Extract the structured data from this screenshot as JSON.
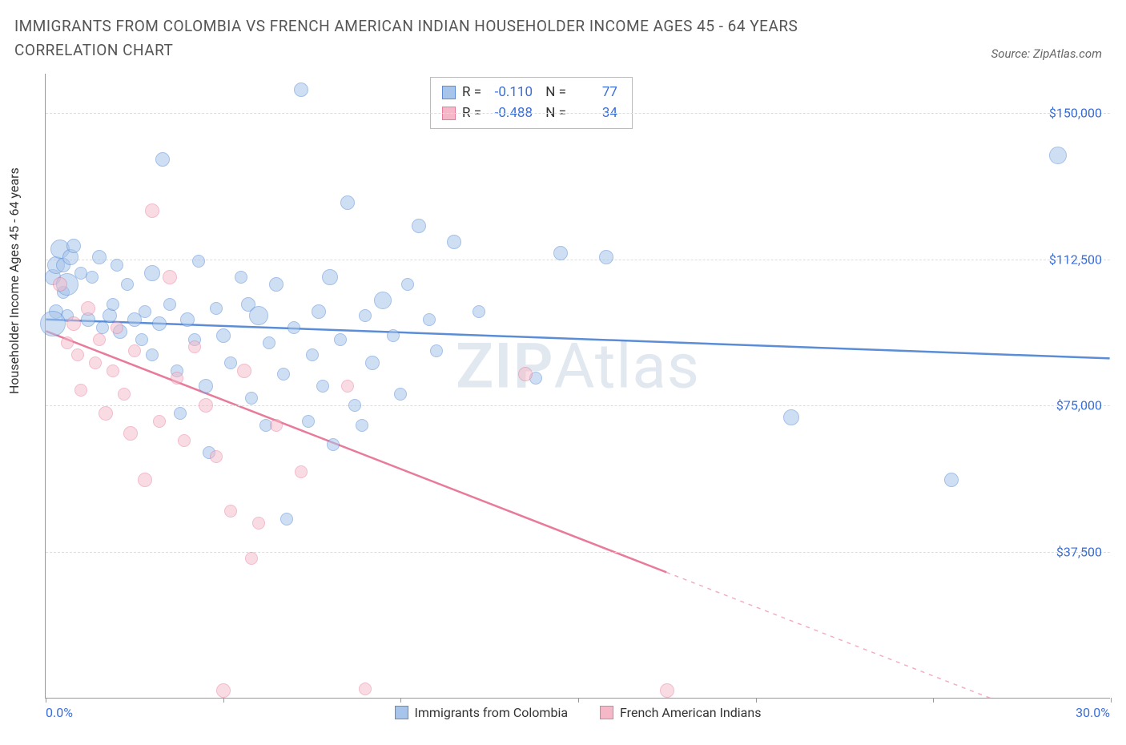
{
  "title": "IMMIGRANTS FROM COLOMBIA VS FRENCH AMERICAN INDIAN HOUSEHOLDER INCOME AGES 45 - 64 YEARS CORRELATION CHART",
  "source_label": "Source: ZipAtlas.com",
  "y_axis_label": "Householder Income Ages 45 - 64 years",
  "watermark": {
    "zip": "ZIP",
    "atlas": "Atlas"
  },
  "x_axis": {
    "min": 0,
    "max": 30,
    "min_label": "0.0%",
    "max_label": "30.0%",
    "tick_step": 5
  },
  "y_axis": {
    "min": 0,
    "max": 160000,
    "gridlines": [
      37500,
      75000,
      112500,
      150000
    ],
    "labels": [
      "$37,500",
      "$75,000",
      "$112,500",
      "$150,000"
    ]
  },
  "series": [
    {
      "name": "Immigrants from Colombia",
      "color_fill": "#a7c5eb",
      "color_stroke": "#5b8dd6",
      "opacity": 0.55,
      "r_value": "-0.110",
      "n_value": "77",
      "trend": {
        "y_at_xmin": 97000,
        "y_at_xmax": 87000,
        "solid_until_x": 30
      },
      "points": [
        {
          "x": 0.2,
          "y": 108000,
          "r": 10
        },
        {
          "x": 0.3,
          "y": 99000,
          "r": 9
        },
        {
          "x": 0.3,
          "y": 111000,
          "r": 11
        },
        {
          "x": 0.5,
          "y": 104000,
          "r": 8
        },
        {
          "x": 0.4,
          "y": 115000,
          "r": 12
        },
        {
          "x": 0.5,
          "y": 111000,
          "r": 9
        },
        {
          "x": 0.6,
          "y": 98000,
          "r": 8
        },
        {
          "x": 0.7,
          "y": 113000,
          "r": 10
        },
        {
          "x": 0.6,
          "y": 106000,
          "r": 14
        },
        {
          "x": 0.2,
          "y": 96000,
          "r": 16
        },
        {
          "x": 0.8,
          "y": 116000,
          "r": 9
        },
        {
          "x": 1.0,
          "y": 109000,
          "r": 8
        },
        {
          "x": 1.2,
          "y": 97000,
          "r": 9
        },
        {
          "x": 1.3,
          "y": 108000,
          "r": 8
        },
        {
          "x": 1.5,
          "y": 113000,
          "r": 9
        },
        {
          "x": 1.6,
          "y": 95000,
          "r": 8
        },
        {
          "x": 1.8,
          "y": 98000,
          "r": 9
        },
        {
          "x": 1.9,
          "y": 101000,
          "r": 8
        },
        {
          "x": 2.0,
          "y": 111000,
          "r": 8
        },
        {
          "x": 2.1,
          "y": 94000,
          "r": 9
        },
        {
          "x": 2.3,
          "y": 106000,
          "r": 8
        },
        {
          "x": 2.5,
          "y": 97000,
          "r": 9
        },
        {
          "x": 2.7,
          "y": 92000,
          "r": 8
        },
        {
          "x": 2.8,
          "y": 99000,
          "r": 8
        },
        {
          "x": 3.0,
          "y": 109000,
          "r": 10
        },
        {
          "x": 3.0,
          "y": 88000,
          "r": 8
        },
        {
          "x": 3.2,
          "y": 96000,
          "r": 9
        },
        {
          "x": 3.3,
          "y": 138000,
          "r": 9
        },
        {
          "x": 3.5,
          "y": 101000,
          "r": 8
        },
        {
          "x": 3.7,
          "y": 84000,
          "r": 8
        },
        {
          "x": 3.8,
          "y": 73000,
          "r": 8
        },
        {
          "x": 4.0,
          "y": 97000,
          "r": 9
        },
        {
          "x": 4.2,
          "y": 92000,
          "r": 8
        },
        {
          "x": 4.3,
          "y": 112000,
          "r": 8
        },
        {
          "x": 4.5,
          "y": 80000,
          "r": 9
        },
        {
          "x": 4.6,
          "y": 63000,
          "r": 8
        },
        {
          "x": 4.8,
          "y": 100000,
          "r": 8
        },
        {
          "x": 5.0,
          "y": 93000,
          "r": 9
        },
        {
          "x": 5.2,
          "y": 86000,
          "r": 8
        },
        {
          "x": 5.5,
          "y": 108000,
          "r": 8
        },
        {
          "x": 5.7,
          "y": 101000,
          "r": 9
        },
        {
          "x": 5.8,
          "y": 77000,
          "r": 8
        },
        {
          "x": 6.0,
          "y": 98000,
          "r": 12
        },
        {
          "x": 6.2,
          "y": 70000,
          "r": 8
        },
        {
          "x": 6.3,
          "y": 91000,
          "r": 8
        },
        {
          "x": 6.5,
          "y": 106000,
          "r": 9
        },
        {
          "x": 6.7,
          "y": 83000,
          "r": 8
        },
        {
          "x": 6.8,
          "y": 46000,
          "r": 8
        },
        {
          "x": 7.0,
          "y": 95000,
          "r": 8
        },
        {
          "x": 7.2,
          "y": 156000,
          "r": 9
        },
        {
          "x": 7.4,
          "y": 71000,
          "r": 8
        },
        {
          "x": 7.5,
          "y": 88000,
          "r": 8
        },
        {
          "x": 7.7,
          "y": 99000,
          "r": 9
        },
        {
          "x": 7.8,
          "y": 80000,
          "r": 8
        },
        {
          "x": 8.0,
          "y": 108000,
          "r": 10
        },
        {
          "x": 8.1,
          "y": 65000,
          "r": 8
        },
        {
          "x": 8.3,
          "y": 92000,
          "r": 8
        },
        {
          "x": 8.5,
          "y": 127000,
          "r": 9
        },
        {
          "x": 8.7,
          "y": 75000,
          "r": 8
        },
        {
          "x": 8.9,
          "y": 70000,
          "r": 8
        },
        {
          "x": 9.0,
          "y": 98000,
          "r": 8
        },
        {
          "x": 9.2,
          "y": 86000,
          "r": 9
        },
        {
          "x": 9.5,
          "y": 102000,
          "r": 11
        },
        {
          "x": 9.8,
          "y": 93000,
          "r": 8
        },
        {
          "x": 10.0,
          "y": 78000,
          "r": 8
        },
        {
          "x": 10.2,
          "y": 106000,
          "r": 8
        },
        {
          "x": 10.5,
          "y": 121000,
          "r": 9
        },
        {
          "x": 10.8,
          "y": 97000,
          "r": 8
        },
        {
          "x": 11.0,
          "y": 89000,
          "r": 8
        },
        {
          "x": 11.5,
          "y": 117000,
          "r": 9
        },
        {
          "x": 12.2,
          "y": 99000,
          "r": 8
        },
        {
          "x": 14.5,
          "y": 114000,
          "r": 9
        },
        {
          "x": 15.8,
          "y": 113000,
          "r": 9
        },
        {
          "x": 21.0,
          "y": 72000,
          "r": 10
        },
        {
          "x": 25.5,
          "y": 56000,
          "r": 9
        },
        {
          "x": 28.5,
          "y": 139000,
          "r": 11
        },
        {
          "x": 13.8,
          "y": 82000,
          "r": 8
        }
      ]
    },
    {
      "name": "French American Indians",
      "color_fill": "#f5b8c8",
      "color_stroke": "#e87a9a",
      "opacity": 0.5,
      "r_value": "-0.488",
      "n_value": "34",
      "trend": {
        "y_at_xmin": 94000,
        "y_at_xmax": -12000,
        "solid_until_x": 17.5
      },
      "points": [
        {
          "x": 0.4,
          "y": 106000,
          "r": 9
        },
        {
          "x": 0.6,
          "y": 91000,
          "r": 8
        },
        {
          "x": 0.8,
          "y": 96000,
          "r": 9
        },
        {
          "x": 0.9,
          "y": 88000,
          "r": 8
        },
        {
          "x": 1.0,
          "y": 79000,
          "r": 8
        },
        {
          "x": 1.2,
          "y": 100000,
          "r": 9
        },
        {
          "x": 1.4,
          "y": 86000,
          "r": 8
        },
        {
          "x": 1.5,
          "y": 92000,
          "r": 8
        },
        {
          "x": 1.7,
          "y": 73000,
          "r": 9
        },
        {
          "x": 1.9,
          "y": 84000,
          "r": 8
        },
        {
          "x": 2.0,
          "y": 95000,
          "r": 8
        },
        {
          "x": 2.2,
          "y": 78000,
          "r": 8
        },
        {
          "x": 2.4,
          "y": 68000,
          "r": 9
        },
        {
          "x": 2.5,
          "y": 89000,
          "r": 8
        },
        {
          "x": 2.8,
          "y": 56000,
          "r": 9
        },
        {
          "x": 3.0,
          "y": 125000,
          "r": 9
        },
        {
          "x": 3.2,
          "y": 71000,
          "r": 8
        },
        {
          "x": 3.5,
          "y": 108000,
          "r": 9
        },
        {
          "x": 3.7,
          "y": 82000,
          "r": 8
        },
        {
          "x": 3.9,
          "y": 66000,
          "r": 8
        },
        {
          "x": 4.2,
          "y": 90000,
          "r": 8
        },
        {
          "x": 4.5,
          "y": 75000,
          "r": 9
        },
        {
          "x": 4.8,
          "y": 62000,
          "r": 8
        },
        {
          "x": 5.0,
          "y": 2000,
          "r": 9
        },
        {
          "x": 5.2,
          "y": 48000,
          "r": 8
        },
        {
          "x": 5.6,
          "y": 84000,
          "r": 9
        },
        {
          "x": 5.8,
          "y": 36000,
          "r": 8
        },
        {
          "x": 6.0,
          "y": 45000,
          "r": 8
        },
        {
          "x": 6.5,
          "y": 70000,
          "r": 8
        },
        {
          "x": 7.2,
          "y": 58000,
          "r": 8
        },
        {
          "x": 8.5,
          "y": 80000,
          "r": 8
        },
        {
          "x": 9.0,
          "y": 2500,
          "r": 8
        },
        {
          "x": 13.5,
          "y": 83000,
          "r": 9
        },
        {
          "x": 17.5,
          "y": 2000,
          "r": 9
        }
      ]
    }
  ],
  "bottom_legend": [
    {
      "swatch_fill": "#a7c5eb",
      "swatch_stroke": "#5b8dd6",
      "label": "Immigrants from Colombia"
    },
    {
      "swatch_fill": "#f5b8c8",
      "swatch_stroke": "#e87a9a",
      "label": "French American Indians"
    }
  ]
}
